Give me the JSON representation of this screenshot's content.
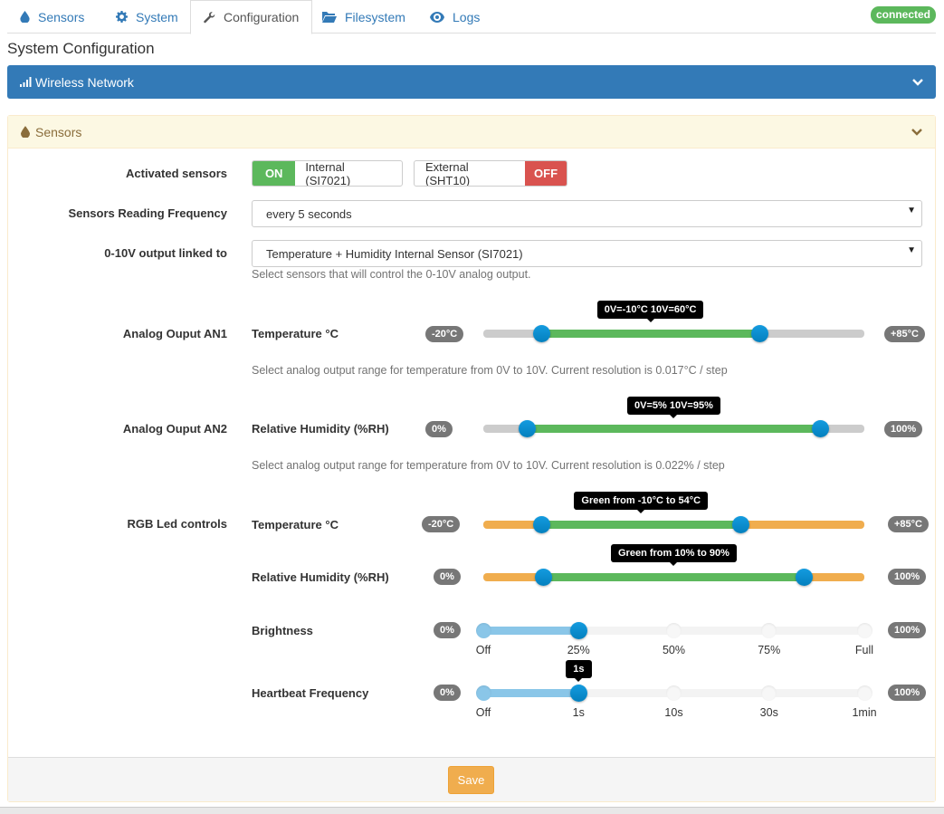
{
  "tabs": [
    {
      "label": "Sensors",
      "icon": "drop-icon"
    },
    {
      "label": "System",
      "icon": "gear-icon"
    },
    {
      "label": "Configuration",
      "icon": "wrench-icon"
    },
    {
      "label": "Filesystem",
      "icon": "folder-icon"
    },
    {
      "label": "Logs",
      "icon": "eye-icon"
    }
  ],
  "status": "connected",
  "page_title": "System Configuration",
  "wifi_panel": {
    "title": "Wireless Network"
  },
  "sensors_panel": {
    "title": "Sensors"
  },
  "activated": {
    "label": "Activated sensors",
    "internal": {
      "state": "ON",
      "text": "Internal (SI7021)"
    },
    "external": {
      "text": "External (SHT10)",
      "state": "OFF"
    }
  },
  "frequency": {
    "label": "Sensors Reading Frequency",
    "value": "every 5 seconds"
  },
  "output": {
    "label": "0-10V output linked to",
    "value": "Temperature + Humidity Internal Sensor (SI7021)",
    "help": "Select sensors that will control the 0-10V analog output."
  },
  "an1": {
    "label": "Analog Ouput AN1",
    "sub": "Temperature °C",
    "min": "-20°C",
    "max": "+85°C",
    "tooltip": "0V=-10°C 10V=60°C",
    "range": [
      -20,
      85
    ],
    "low": -10,
    "high": 60,
    "help": "Select analog output range for temperature from 0V to 10V. Current resolution is 0.017°C / step"
  },
  "an2": {
    "label": "Analog Ouput AN2",
    "sub": "Relative Humidity (%RH)",
    "min": "0%",
    "max": "100%",
    "tooltip": "0V=5% 10V=95%",
    "range": [
      0,
      100
    ],
    "low": 5,
    "high": 95,
    "help": "Select analog output range for temperature from 0V to 10V. Current resolution is 0.022% / step"
  },
  "rgb": {
    "label": "RGB Led controls",
    "temp": {
      "sub": "Temperature °C",
      "min": "-20°C",
      "max": "+85°C",
      "tooltip": "Green from -10°C to 54°C",
      "range": [
        -20,
        85
      ],
      "low": -10,
      "high": 54
    },
    "hum": {
      "sub": "Relative Humidity (%RH)",
      "min": "0%",
      "max": "100%",
      "tooltip": "Green from 10% to 90%",
      "range": [
        0,
        100
      ],
      "low": 10,
      "high": 90
    },
    "brightness": {
      "sub": "Brightness",
      "min": "0%",
      "max": "100%",
      "ticks": [
        "Off",
        "25%",
        "50%",
        "75%",
        "Full"
      ],
      "selected_index": 1
    },
    "heartbeat": {
      "sub": "Heartbeat Frequency",
      "min": "0%",
      "max": "100%",
      "ticks": [
        "Off",
        "1s",
        "10s",
        "30s",
        "1min"
      ],
      "selected_index": 1,
      "tooltip": "1s"
    }
  },
  "save_label": "Save",
  "colors": {
    "primary": "#337ab7",
    "success": "#5cb85c",
    "danger": "#d9534f",
    "warning": "#f0ad4e",
    "track_green": "#5cb85c",
    "track_orange": "#f0ad4e",
    "track_grey": "#ccc"
  }
}
